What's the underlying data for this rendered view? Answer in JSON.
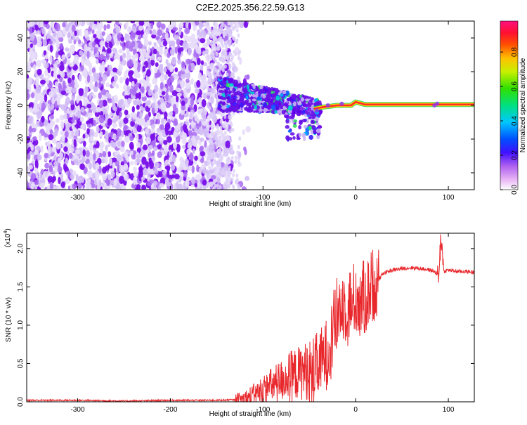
{
  "title": "C2E2.2025.356.22.59.G13",
  "colors": {
    "snr_line": "#e8282c",
    "scatter_purple": "#6a00e0",
    "scatter_light": "#d6c4f6",
    "signal_band": "#ff2a2a"
  },
  "colorbar": {
    "label": "Normalized spectral amplitude",
    "ticks": [
      "0.0",
      "0.2",
      "0.4",
      "0.6",
      "0.8"
    ]
  },
  "chart_data": [
    {
      "type": "scatter",
      "xlabel": "Height of straight line (km)",
      "ylabel": "Frequency (Hz)",
      "xlim": [
        -355,
        128
      ],
      "ylim": [
        -50,
        50
      ],
      "xticks": [
        "-300",
        "-200",
        "-100",
        "0",
        "100"
      ],
      "yticks": [
        "-40",
        "-20",
        "0",
        "20",
        "40"
      ],
      "grid": false,
      "colorscale": "rainbow",
      "regions": [
        {
          "name": "noise",
          "x": [
            -355,
            -140
          ],
          "y": [
            -50,
            50
          ],
          "amplitude": 0.1
        },
        {
          "name": "transition",
          "x": [
            -140,
            -40
          ],
          "y": [
            -20,
            15
          ],
          "amplitude": 0.3
        },
        {
          "name": "signal",
          "x": [
            -45,
            128
          ],
          "y": [
            -2,
            2
          ],
          "amplitude": 0.95
        }
      ],
      "signal_line": {
        "x": [
          -45,
          -35,
          -20,
          -5,
          0,
          10,
          128
        ],
        "y": [
          -2,
          -1,
          0,
          0,
          2,
          0.5,
          0.5
        ]
      }
    },
    {
      "type": "line",
      "xlabel": "Height of straight line (km)",
      "ylabel": "SNR (10 * v/v)",
      "y_multiplier": "(x10",
      "y_multiplier_exp": "4",
      "y_multiplier_close": ")",
      "xlim": [
        -355,
        128
      ],
      "ylim": [
        0,
        2.2
      ],
      "xticks": [
        "-300",
        "-200",
        "-100",
        "0",
        "100"
      ],
      "yticks": [
        "0.0",
        "0.5",
        "1.0",
        "1.5",
        "2.0"
      ],
      "grid": false,
      "series": [
        {
          "x": [
            -355,
            -300,
            -250,
            -200,
            -150,
            -120,
            -110,
            -100,
            -90,
            -80,
            -70,
            -60,
            -50,
            -40,
            -30,
            -25,
            -20,
            -15,
            -10,
            -5,
            0,
            5,
            10,
            15,
            20,
            25,
            30,
            40,
            50,
            60,
            70,
            80,
            85,
            90,
            92,
            95,
            100,
            110,
            120,
            128
          ],
          "y": [
            0.02,
            0.02,
            0.01,
            0.02,
            0.02,
            0.03,
            0.08,
            0.15,
            0.22,
            0.28,
            0.35,
            0.38,
            0.42,
            0.48,
            0.65,
            0.9,
            1.15,
            1.3,
            1.25,
            1.3,
            1.35,
            1.35,
            1.35,
            1.45,
            1.55,
            1.6,
            1.68,
            1.72,
            1.74,
            1.75,
            1.74,
            1.72,
            1.7,
            1.65,
            2.2,
            1.7,
            1.72,
            1.7,
            1.7,
            1.69
          ]
        }
      ]
    }
  ]
}
